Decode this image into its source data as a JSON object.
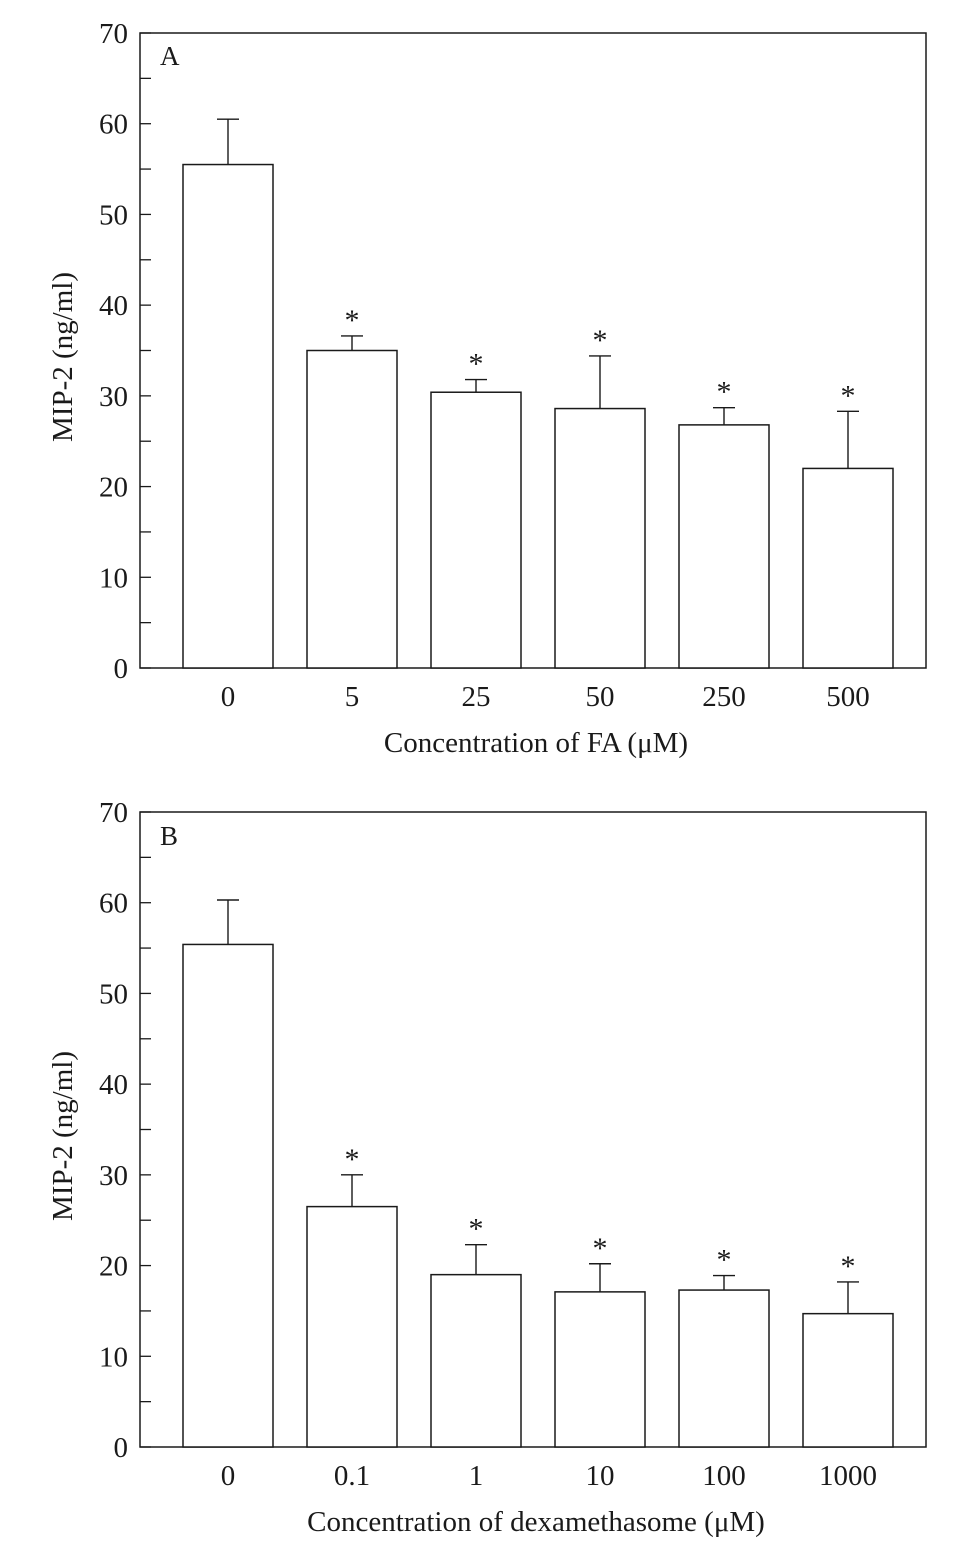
{
  "chart_data": [
    {
      "type": "bar",
      "panel_label": "A",
      "categories": [
        "0",
        "5",
        "25",
        "50",
        "250",
        "500"
      ],
      "values": [
        55.5,
        35.0,
        30.4,
        28.6,
        26.8,
        22.0
      ],
      "error": [
        5.0,
        1.6,
        1.4,
        5.8,
        1.9,
        6.3
      ],
      "significance": [
        "",
        "*",
        "*",
        "*",
        "*",
        "*"
      ],
      "xlabel": "Concentration of FA (μM)",
      "ylabel": "MIP-2 (ng/ml)",
      "ylim": [
        0,
        70
      ],
      "yticks": [
        0,
        10,
        20,
        30,
        40,
        50,
        60,
        70
      ],
      "grid": false,
      "colors": {
        "bar_fill": "#ffffff",
        "stroke": "#1a1a1a"
      }
    },
    {
      "type": "bar",
      "panel_label": "B",
      "categories": [
        "0",
        "0.1",
        "1",
        "10",
        "100",
        "1000"
      ],
      "values": [
        55.4,
        26.5,
        19.0,
        17.1,
        17.3,
        14.7
      ],
      "error": [
        4.9,
        3.5,
        3.3,
        3.1,
        1.6,
        3.5
      ],
      "significance": [
        "",
        "*",
        "*",
        "*",
        "*",
        "*"
      ],
      "xlabel": "Concentration of dexamethasome (μM)",
      "ylabel": "MIP-2 (ng/ml)",
      "ylim": [
        0,
        70
      ],
      "yticks": [
        0,
        10,
        20,
        30,
        40,
        50,
        60,
        70
      ],
      "grid": false,
      "colors": {
        "bar_fill": "#ffffff",
        "stroke": "#1a1a1a"
      }
    }
  ]
}
